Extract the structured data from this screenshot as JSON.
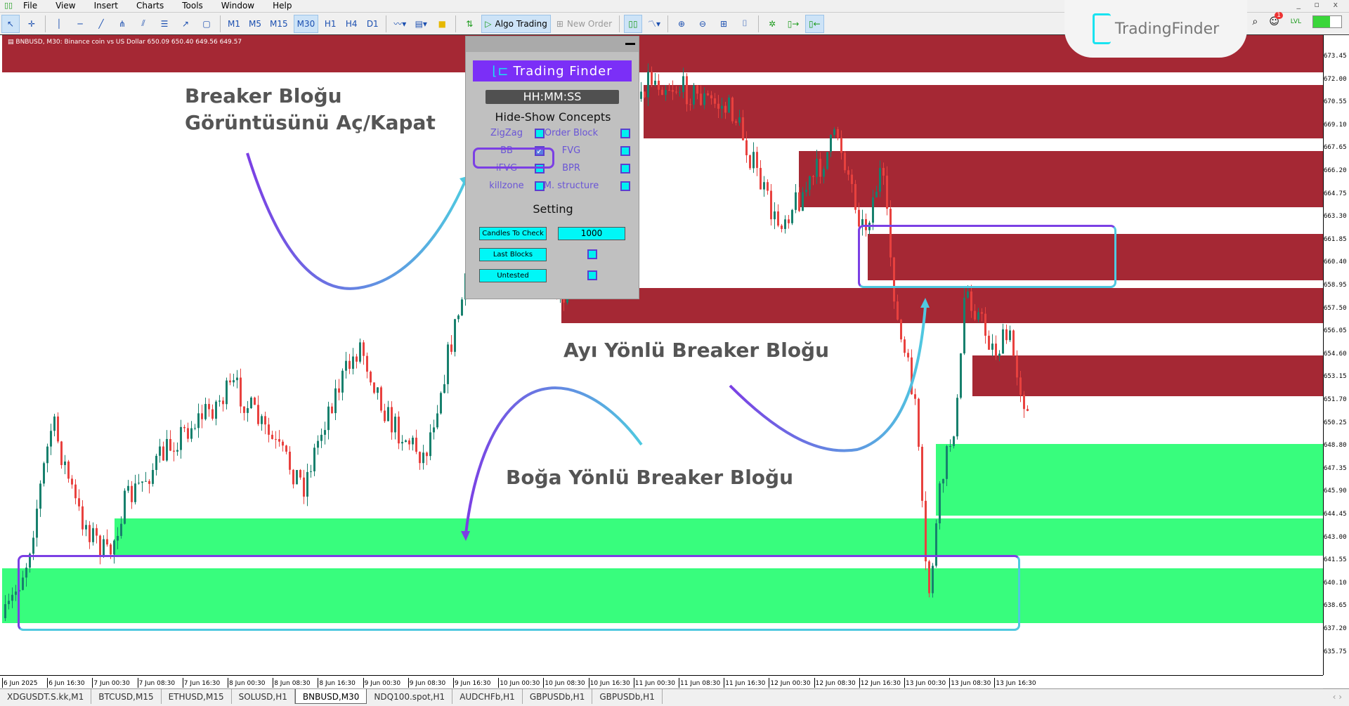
{
  "menu": {
    "items": [
      "File",
      "View",
      "Insert",
      "Charts",
      "Tools",
      "Window",
      "Help"
    ]
  },
  "toolbar": {
    "timeframes": [
      "M1",
      "M5",
      "M15",
      "M30",
      "H1",
      "H4",
      "D1"
    ],
    "active_timeframe": "M30",
    "algo_trading": "Algo Trading",
    "new_order": "New Order",
    "tool_icons": [
      "cursor-icon",
      "crosshair-icon",
      "vertical-line-icon",
      "horizontal-line-icon",
      "trendline-icon",
      "andrews-pitchfork-icon",
      "fibonacci-icon",
      "equidistant-channel-icon",
      "arrow-line-icon",
      "rectangle-icon"
    ]
  },
  "brand": {
    "name": "TradingFinder",
    "notifications": "1",
    "lvl": "LVL"
  },
  "chart": {
    "symbol_info": "BNBUSD, M30:  Binance coin vs US Dollar  650.09 650.40 649.56 649.57",
    "price_labels": [
      "673.45",
      "672.00",
      "670.55",
      "669.10",
      "667.65",
      "666.20",
      "664.75",
      "663.30",
      "661.85",
      "660.40",
      "658.95",
      "657.50",
      "656.05",
      "654.60",
      "653.15",
      "651.70",
      "650.25",
      "648.80",
      "647.35",
      "645.90",
      "644.45",
      "643.00",
      "641.55",
      "640.10",
      "638.65",
      "637.20",
      "635.75"
    ],
    "time_labels": [
      "6 Jun 2025",
      "6 Jun 16:30",
      "7 Jun 00:30",
      "7 Jun 08:30",
      "7 Jun 16:30",
      "8 Jun 00:30",
      "8 Jun 08:30",
      "8 Jun 16:30",
      "9 Jun 00:30",
      "9 Jun 08:30",
      "9 Jun 16:30",
      "10 Jun 00:30",
      "10 Jun 08:30",
      "10 Jun 16:30",
      "11 Jun 00:30",
      "11 Jun 08:30",
      "11 Jun 16:30",
      "12 Jun 00:30",
      "12 Jun 08:30",
      "12 Jun 16:30",
      "13 Jun 00:30",
      "13 Jun 08:30",
      "13 Jun 16:30"
    ],
    "colors": {
      "bearish_zone": "#a52834",
      "bullish_zone": "#38fd7d",
      "bull_candle": "#17806d",
      "bear_candle": "#e8413e"
    }
  },
  "annotations": {
    "toggle_line1": "Breaker Bloğu",
    "toggle_line2": "Görüntüsünü Aç/Kapat",
    "bearish": "Ayı Yönlü Breaker Bloğu",
    "bullish": "Boğa Yönlü Breaker Bloğu"
  },
  "panel": {
    "brand": "Trading Finder",
    "clock": "HH:MM:SS",
    "concepts_title": "Hide-Show Concepts",
    "concepts": [
      {
        "label": "ZigZag",
        "checked": false
      },
      {
        "label": "Order Block",
        "checked": false
      },
      {
        "label": "BB",
        "checked": true
      },
      {
        "label": "FVG",
        "checked": false
      },
      {
        "label": "iFVG",
        "checked": false
      },
      {
        "label": "BPR",
        "checked": false
      },
      {
        "label": "killzone",
        "checked": false
      },
      {
        "label": "M. structure",
        "checked": false
      }
    ],
    "setting_title": "Setting",
    "candles_to_check_label": "Candles To Check",
    "candles_to_check": "1000",
    "last_blocks_label": "Last Blocks",
    "last_blocks": false,
    "untested_label": "Untested",
    "untested": false
  },
  "tabs": {
    "items": [
      "XDGUSDT.S.kk,M1",
      "BTCUSD,M15",
      "ETHUSD,M15",
      "SOLUSD,H1",
      "BNBUSD,M30",
      "NDQ100.spot,H1",
      "AUDCHFb,H1",
      "GBPUSDb,H1",
      "GBPUSDb,H1"
    ],
    "active": "BNBUSD,M30"
  }
}
